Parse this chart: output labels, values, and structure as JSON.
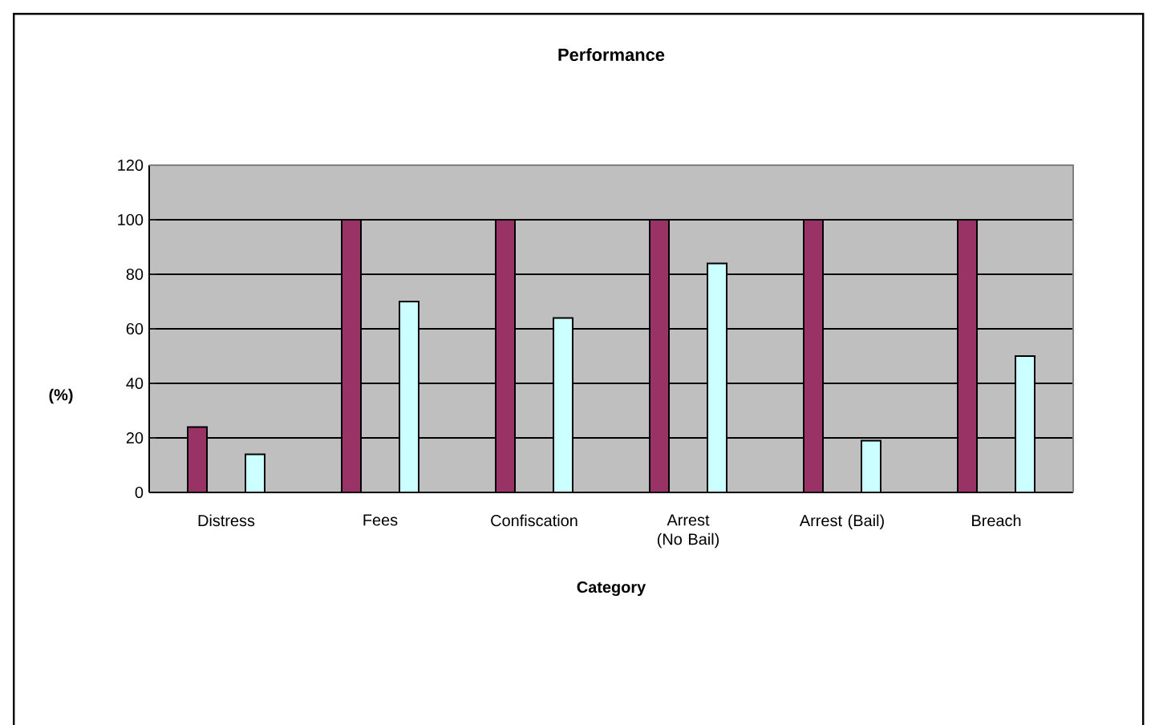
{
  "chart_data": {
    "type": "bar",
    "title": "Performance",
    "xlabel": "Category",
    "ylabel": "(%)",
    "categories": [
      "Distress",
      "Fees",
      "Confiscation",
      "Arrest (No Bail)",
      "Arrest (Bail)",
      "Breach"
    ],
    "series": [
      {
        "color": "#993366",
        "values": [
          24,
          100,
          100,
          100,
          100,
          100
        ]
      },
      {
        "color": "#ccffff",
        "values": [
          14,
          70,
          64,
          84,
          19,
          50
        ]
      }
    ],
    "ylim": [
      0,
      120
    ],
    "yticks": [
      0,
      20,
      40,
      60,
      80,
      100,
      120
    ],
    "grid": "y",
    "legend": false
  }
}
